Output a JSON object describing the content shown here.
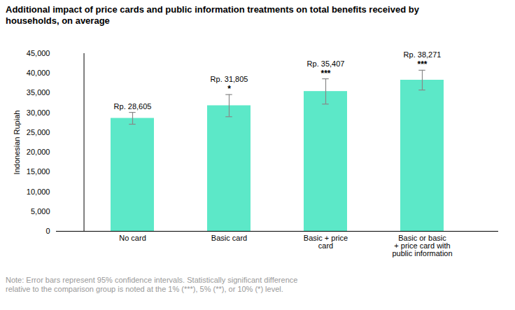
{
  "chart_data": {
    "type": "bar",
    "title": "Additional impact of price cards and public information treatments on total benefits received by\nhouseholds, on average",
    "categories": [
      "No card",
      "Basic card",
      "Basic + price\ncard",
      "Basic or basic\n+ price card with\npublic information"
    ],
    "values": [
      28605,
      31805,
      35407,
      38271
    ],
    "errors": [
      1500,
      2800,
      3200,
      2500
    ],
    "significance": [
      null,
      "*",
      "***",
      "***"
    ],
    "value_labels": [
      "Rp. 28,605",
      "Rp. 31,805",
      "Rp. 35,407",
      "Rp. 38,271"
    ],
    "data_labels": true,
    "color": "#5CE8C8",
    "ylabel": "Indonesian Rupiah",
    "ylim": [
      0,
      45000
    ],
    "yticks": [
      0,
      {
        "value": 5000,
        "label": "5,000"
      },
      {
        "value": 10000,
        "label": "10,000"
      },
      {
        "value": 15000,
        "label": "15,000"
      },
      {
        "value": 20000,
        "label": "20,000"
      },
      {
        "value": 25000,
        "label": "25,000"
      },
      {
        "value": 30000,
        "label": "30,000"
      },
      {
        "value": 35000,
        "label": "35,000"
      },
      {
        "value": 40000,
        "label": "40,000"
      },
      {
        "value": 45000,
        "label": "45,000"
      }
    ],
    "grid": false,
    "note": "Note: Error bars represent 95% confidence intervals. Statistically significant difference\nrelative to the comparison group is noted at the 1% (***), 5% (**), or 10% (*) level."
  }
}
